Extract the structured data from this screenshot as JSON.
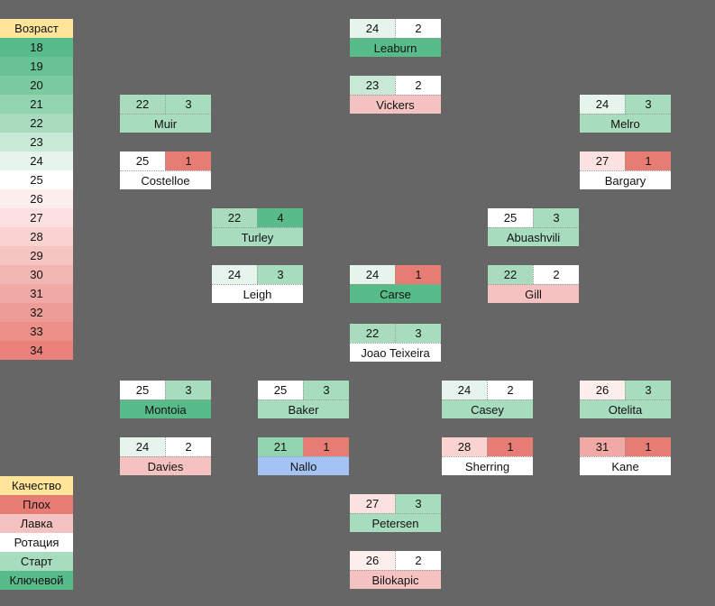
{
  "age_legend": {
    "header": "Возраст",
    "values": [
      "18",
      "19",
      "20",
      "21",
      "22",
      "23",
      "24",
      "25",
      "26",
      "27",
      "28",
      "29",
      "30",
      "31",
      "32",
      "33",
      "34"
    ]
  },
  "quality_legend": {
    "header": "Качество",
    "items": [
      "Плох",
      "Лавка",
      "Ротация",
      "Старт",
      "Ключевой"
    ]
  },
  "players": [
    {
      "name": "Leaburn",
      "age": "24",
      "quality": "2"
    },
    {
      "name": "Vickers",
      "age": "23",
      "quality": "2"
    },
    {
      "name": "Muir",
      "age": "22",
      "quality": "3"
    },
    {
      "name": "Melro",
      "age": "24",
      "quality": "3"
    },
    {
      "name": "Costelloe",
      "age": "25",
      "quality": "1"
    },
    {
      "name": "Bargary",
      "age": "27",
      "quality": "1"
    },
    {
      "name": "Turley",
      "age": "22",
      "quality": "4"
    },
    {
      "name": "Abuashvili",
      "age": "25",
      "quality": "3"
    },
    {
      "name": "Leigh",
      "age": "24",
      "quality": "3"
    },
    {
      "name": "Carse",
      "age": "24",
      "quality": "1"
    },
    {
      "name": "Gill",
      "age": "22",
      "quality": "2"
    },
    {
      "name": "Joao Teixeira",
      "age": "22",
      "quality": "3"
    },
    {
      "name": "Montoia",
      "age": "25",
      "quality": "3"
    },
    {
      "name": "Baker",
      "age": "25",
      "quality": "3"
    },
    {
      "name": "Casey",
      "age": "24",
      "quality": "2"
    },
    {
      "name": "Otelita",
      "age": "26",
      "quality": "3"
    },
    {
      "name": "Davies",
      "age": "24",
      "quality": "2"
    },
    {
      "name": "Nallo",
      "age": "21",
      "quality": "1"
    },
    {
      "name": "Sherring",
      "age": "28",
      "quality": "1"
    },
    {
      "name": "Kane",
      "age": "31",
      "quality": "1"
    },
    {
      "name": "Petersen",
      "age": "27",
      "quality": "3"
    },
    {
      "name": "Bilokapic",
      "age": "26",
      "quality": "2"
    }
  ]
}
